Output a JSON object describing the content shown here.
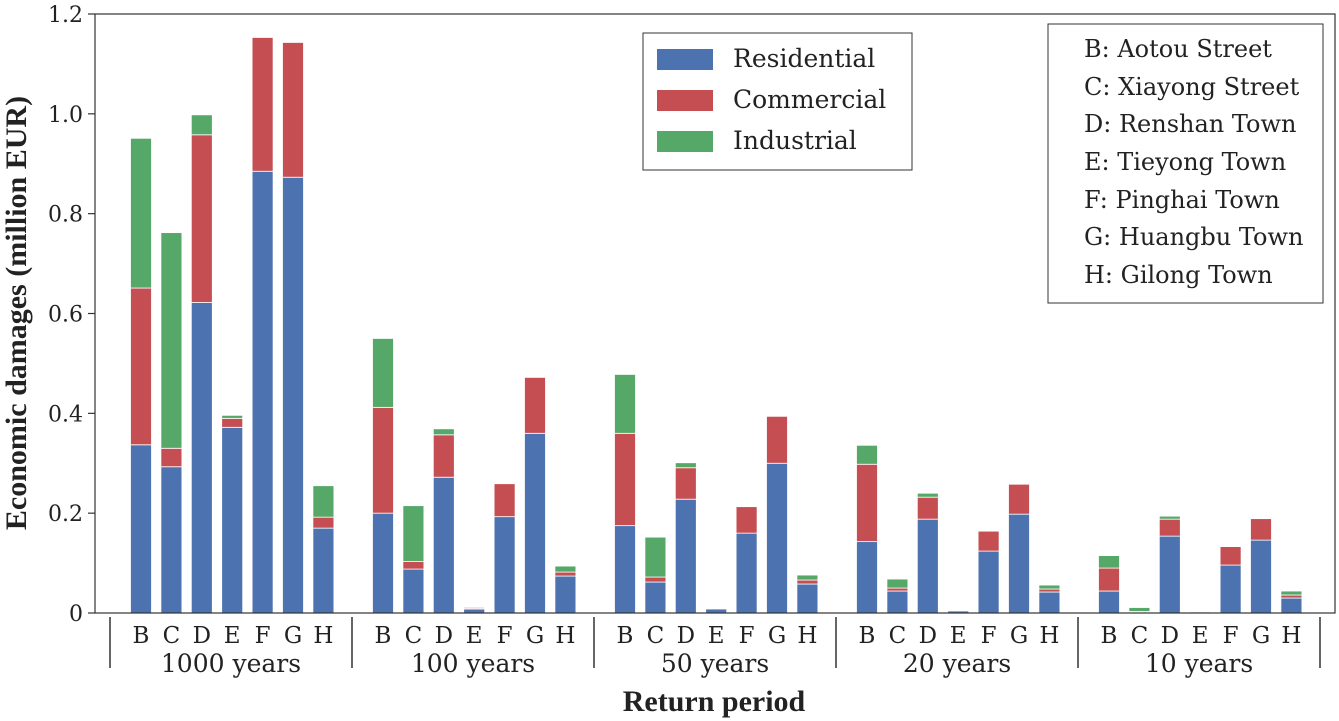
{
  "chart_data": {
    "type": "bar",
    "stacked": true,
    "ylabel": "Economic damages (million EUR)",
    "xlabel": "Return period",
    "ylim": [
      0,
      1.2
    ],
    "yticks": [
      0,
      0.2,
      0.4,
      0.6,
      0.8,
      1.0,
      1.2
    ],
    "ytick_labels": [
      "0",
      "0.2",
      "0.4",
      "0.6",
      "0.8",
      "1.0",
      "1.2"
    ],
    "categories": [
      "B",
      "C",
      "D",
      "E",
      "F",
      "G",
      "H"
    ],
    "groups": [
      "1000 years",
      "100 years",
      "50 years",
      "20 years",
      "10 years"
    ],
    "series": [
      {
        "name": "Residential",
        "color": "#4c72b0",
        "values": [
          [
            0.337,
            0.293,
            0.622,
            0.372,
            0.885,
            0.873,
            0.17
          ],
          [
            0.2,
            0.088,
            0.272,
            0.008,
            0.193,
            0.36,
            0.074
          ],
          [
            0.175,
            0.062,
            0.228,
            0.008,
            0.16,
            0.3,
            0.058
          ],
          [
            0.143,
            0.044,
            0.188,
            0.004,
            0.124,
            0.198,
            0.042
          ],
          [
            0.044,
            0.002,
            0.154,
            0.002,
            0.096,
            0.146,
            0.03
          ]
        ]
      },
      {
        "name": "Commercial",
        "color": "#c44e52",
        "values": [
          [
            0.314,
            0.037,
            0.336,
            0.018,
            0.268,
            0.27,
            0.022
          ],
          [
            0.212,
            0.015,
            0.085,
            0.002,
            0.066,
            0.112,
            0.008
          ],
          [
            0.185,
            0.01,
            0.063,
            0.0,
            0.053,
            0.094,
            0.008
          ],
          [
            0.155,
            0.006,
            0.044,
            0.0,
            0.04,
            0.06,
            0.006
          ],
          [
            0.046,
            0.001,
            0.034,
            0.0,
            0.037,
            0.043,
            0.006
          ]
        ]
      },
      {
        "name": "Industrial",
        "color": "#55a868",
        "values": [
          [
            0.3,
            0.432,
            0.04,
            0.006,
            0.0,
            0.0,
            0.063
          ],
          [
            0.138,
            0.112,
            0.012,
            0.002,
            0.0,
            0.0,
            0.012
          ],
          [
            0.118,
            0.08,
            0.01,
            0.0,
            0.0,
            0.0,
            0.01
          ],
          [
            0.038,
            0.018,
            0.008,
            0.0,
            0.0,
            0.0,
            0.008
          ],
          [
            0.025,
            0.008,
            0.006,
            0.0,
            0.0,
            0.0,
            0.008
          ]
        ]
      }
    ],
    "legend": {
      "position": "top-center",
      "entries": [
        "Residential",
        "Commercial",
        "Industrial"
      ]
    },
    "key_box": {
      "position": "top-right",
      "entries": [
        "B: Aotou Street",
        "C: Xiayong Street",
        "D: Renshan Town",
        "E: Tieyong Town",
        "F: Pinghai Town",
        "G: Huangbu Town",
        "H: Gilong Town"
      ]
    }
  }
}
